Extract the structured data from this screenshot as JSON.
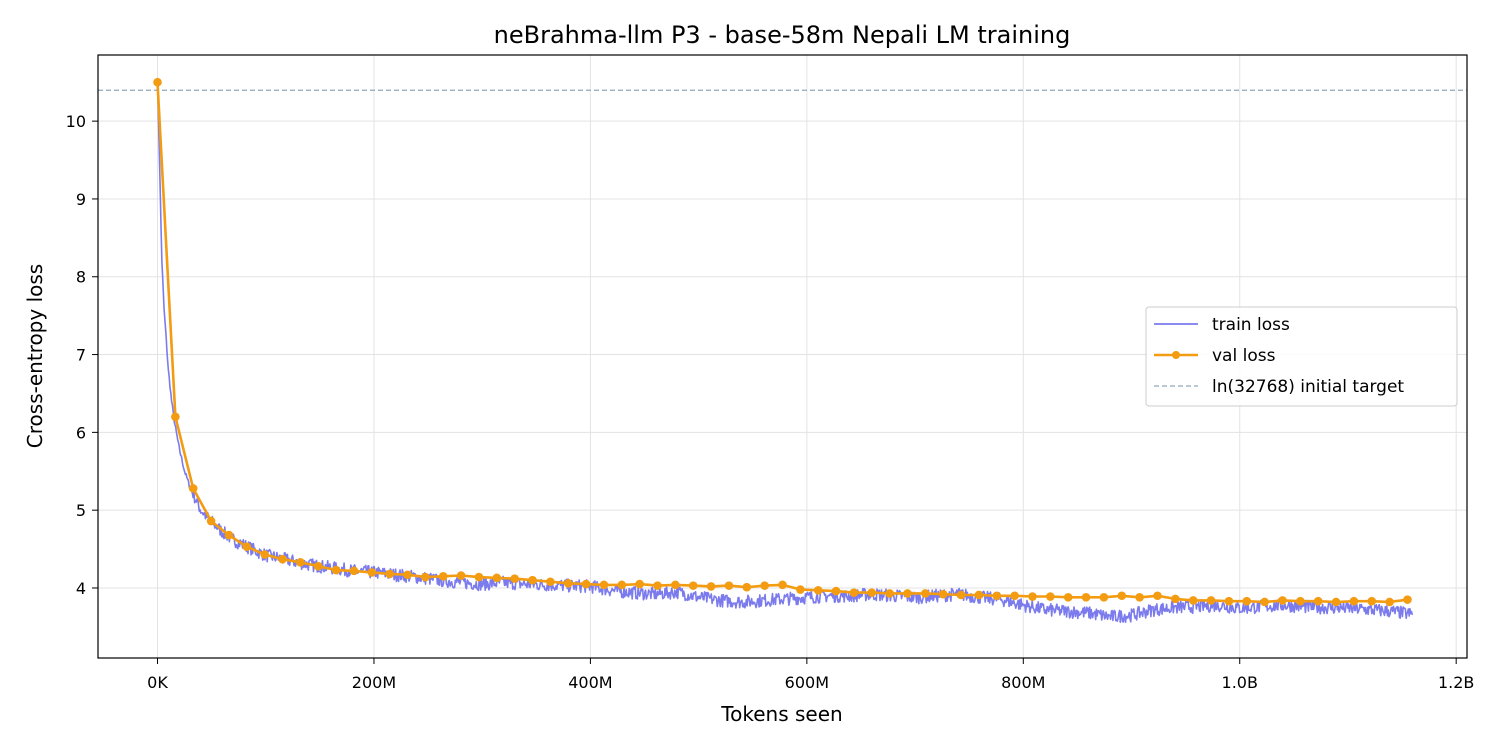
{
  "chart_data": {
    "type": "line",
    "title": "neBrahma-llm P3 - base-58m Nepali LM training",
    "xlabel": "Tokens seen",
    "ylabel": "Cross-entropy loss",
    "xlim": [
      -55,
      1210
    ],
    "ylim": [
      3.1,
      10.85
    ],
    "x_unit": "million tokens",
    "x_ticks": [
      {
        "value": 0,
        "label": "0K"
      },
      {
        "value": 200,
        "label": "200M"
      },
      {
        "value": 400,
        "label": "400M"
      },
      {
        "value": 600,
        "label": "600M"
      },
      {
        "value": 800,
        "label": "800M"
      },
      {
        "value": 1000,
        "label": "1.0B"
      },
      {
        "value": 1200,
        "label": "1.2B"
      }
    ],
    "y_ticks": [
      {
        "value": 4,
        "label": "4"
      },
      {
        "value": 5,
        "label": "5"
      },
      {
        "value": 6,
        "label": "6"
      },
      {
        "value": 7,
        "label": "7"
      },
      {
        "value": 8,
        "label": "8"
      },
      {
        "value": 9,
        "label": "9"
      },
      {
        "value": 10,
        "label": "10"
      }
    ],
    "grid": true,
    "legend_position": "center-right",
    "series": [
      {
        "name": "train loss",
        "color": "#7b7bee",
        "style": "line",
        "x": [
          0,
          2,
          4,
          6,
          8,
          10,
          13,
          16,
          20,
          25,
          30,
          35,
          40,
          50,
          60,
          70,
          80,
          90,
          100,
          120,
          140,
          160,
          180,
          200,
          220,
          240,
          260,
          280,
          300,
          320,
          340,
          360,
          380,
          400,
          420,
          440,
          460,
          480,
          500,
          520,
          540,
          560,
          580,
          600,
          620,
          640,
          660,
          680,
          700,
          720,
          740,
          760,
          780,
          800,
          820,
          840,
          860,
          880,
          900,
          920,
          940,
          960,
          980,
          1000,
          1020,
          1040,
          1060,
          1080,
          1100,
          1120,
          1140,
          1160
        ],
        "y": [
          10.5,
          9.4,
          8.2,
          7.6,
          7.2,
          6.8,
          6.4,
          6.1,
          5.8,
          5.5,
          5.3,
          5.15,
          5.0,
          4.85,
          4.72,
          4.62,
          4.55,
          4.48,
          4.42,
          4.36,
          4.3,
          4.26,
          4.22,
          4.2,
          4.17,
          4.14,
          4.1,
          4.07,
          4.05,
          4.07,
          4.05,
          4.04,
          4.03,
          4.02,
          3.97,
          3.94,
          3.92,
          3.95,
          3.88,
          3.84,
          3.82,
          3.84,
          3.86,
          3.88,
          3.9,
          3.9,
          3.92,
          3.9,
          3.88,
          3.9,
          3.92,
          3.88,
          3.85,
          3.78,
          3.72,
          3.7,
          3.68,
          3.63,
          3.65,
          3.72,
          3.75,
          3.76,
          3.78,
          3.74,
          3.76,
          3.78,
          3.76,
          3.75,
          3.74,
          3.72,
          3.7,
          3.66
        ]
      },
      {
        "name": "val loss",
        "color": "#f39c12",
        "style": "line-marker",
        "x": [
          0,
          16.5,
          33,
          49.5,
          66,
          82.5,
          99,
          115.5,
          132,
          148.5,
          165,
          181.5,
          198,
          214.5,
          231,
          247.5,
          264,
          280.5,
          297,
          313.5,
          330,
          346.5,
          363,
          379.5,
          396,
          412.5,
          429,
          445.5,
          462,
          478.5,
          495,
          511.5,
          528,
          544.5,
          561,
          577.5,
          594,
          610.5,
          627,
          643.5,
          660,
          676.5,
          693,
          709.5,
          726,
          742.5,
          759,
          775.5,
          792,
          808.5,
          825,
          841.5,
          858,
          874.5,
          891,
          907.5,
          924,
          940.5,
          957,
          973.5,
          990,
          1006.5,
          1023,
          1039.5,
          1056,
          1072.5,
          1089,
          1105.5,
          1122,
          1138.5,
          1155
        ],
        "y": [
          10.5,
          6.2,
          5.28,
          4.86,
          4.68,
          4.53,
          4.43,
          4.37,
          4.33,
          4.28,
          4.23,
          4.22,
          4.2,
          4.18,
          4.17,
          4.14,
          4.15,
          4.16,
          4.14,
          4.13,
          4.12,
          4.1,
          4.08,
          4.06,
          4.05,
          4.04,
          4.04,
          4.05,
          4.03,
          4.04,
          4.03,
          4.02,
          4.03,
          4.01,
          4.03,
          4.04,
          3.98,
          3.97,
          3.96,
          3.94,
          3.94,
          3.93,
          3.93,
          3.93,
          3.92,
          3.91,
          3.91,
          3.9,
          3.9,
          3.89,
          3.89,
          3.88,
          3.88,
          3.88,
          3.9,
          3.88,
          3.9,
          3.86,
          3.84,
          3.84,
          3.83,
          3.83,
          3.82,
          3.84,
          3.83,
          3.83,
          3.82,
          3.83,
          3.83,
          3.82,
          3.85
        ]
      },
      {
        "name": "ln(32768) initial target",
        "color": "#8fa7bc",
        "style": "dashed",
        "y_constant": 10.397
      }
    ]
  }
}
